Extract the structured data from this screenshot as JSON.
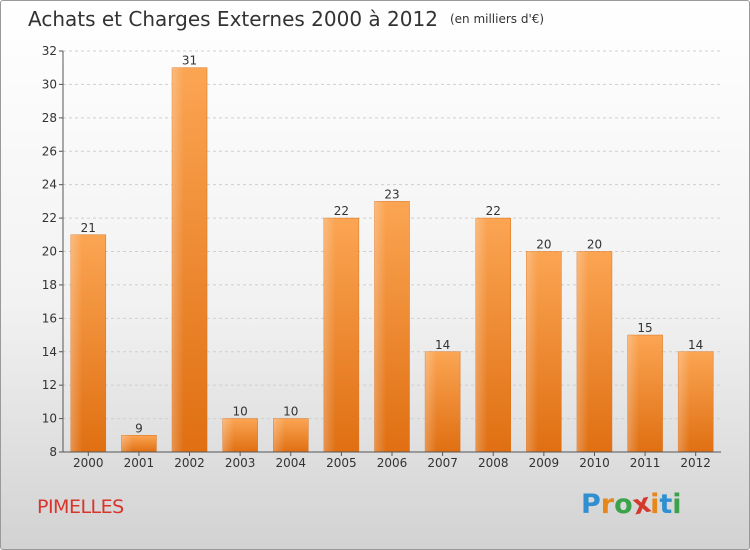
{
  "title": "Achats et Charges Externes 2000 à 2012",
  "unit": "(en milliers d'€)",
  "commune": "PIMELLES",
  "logo": {
    "text": "Proxiti",
    "letters": [
      "P",
      "r",
      "o",
      "x",
      "i",
      "t",
      "i"
    ],
    "colors": [
      "#2f8fd0",
      "#e7871a",
      "#3aa34a",
      "#d33a2c",
      "#e7871a",
      "#2f8fd0",
      "#3aa34a"
    ]
  },
  "chart_data": {
    "type": "bar",
    "categories": [
      "2000",
      "2001",
      "2002",
      "2003",
      "2004",
      "2005",
      "2006",
      "2007",
      "2008",
      "2009",
      "2010",
      "2011",
      "2012"
    ],
    "values": [
      21,
      9,
      31,
      10,
      10,
      22,
      23,
      14,
      22,
      20,
      20,
      15,
      14
    ],
    "value_labels": [
      "21",
      "9",
      "31",
      "10",
      "10",
      "22",
      "23",
      "14",
      "22",
      "20",
      "20",
      "15",
      "14"
    ],
    "yticks": [
      "8",
      "10",
      "12",
      "14",
      "16",
      "18",
      "20",
      "22",
      "24",
      "26",
      "28",
      "30",
      "32"
    ],
    "ylim": [
      8,
      32
    ],
    "grid": true,
    "bar_color": "#f08a2a"
  }
}
